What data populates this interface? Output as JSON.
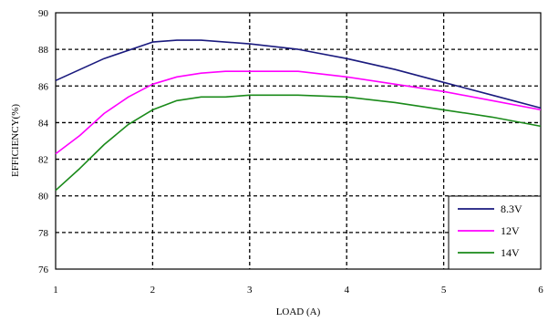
{
  "chart_data": {
    "type": "line",
    "title": "",
    "xlabel": "LOAD (A)",
    "ylabel": "EFFICIENCY(%)",
    "xlim": [
      1,
      6
    ],
    "ylim": [
      76,
      90
    ],
    "x_ticks": [
      "1",
      "2",
      "3",
      "4",
      "5",
      "6"
    ],
    "y_ticks": [
      "76",
      "78",
      "80",
      "82",
      "84",
      "86",
      "88",
      "90"
    ],
    "grid": true,
    "legend_position": "bottom-right",
    "series": [
      {
        "name": "8.3V",
        "color": "#1a1a7e",
        "x": [
          1,
          1.5,
          2,
          2.25,
          2.5,
          3,
          3.5,
          4,
          4.5,
          5,
          5.5,
          6
        ],
        "values": [
          86.3,
          87.5,
          88.4,
          88.5,
          88.5,
          88.3,
          88.0,
          87.5,
          86.9,
          86.2,
          85.5,
          84.8
        ]
      },
      {
        "name": "12V",
        "color": "#ff00ff",
        "x": [
          1,
          1.25,
          1.5,
          1.75,
          2,
          2.25,
          2.5,
          2.75,
          3,
          3.5,
          4,
          4.5,
          5,
          5.5,
          6
        ],
        "values": [
          82.3,
          83.3,
          84.5,
          85.4,
          86.1,
          86.5,
          86.7,
          86.8,
          86.8,
          86.8,
          86.5,
          86.1,
          85.7,
          85.2,
          84.7
        ]
      },
      {
        "name": "14V",
        "color": "#1a8a1a",
        "x": [
          1,
          1.25,
          1.5,
          1.75,
          2,
          2.25,
          2.5,
          2.75,
          3,
          3.5,
          4,
          4.5,
          5,
          5.5,
          6
        ],
        "values": [
          80.3,
          81.5,
          82.8,
          83.9,
          84.7,
          85.2,
          85.4,
          85.4,
          85.5,
          85.5,
          85.4,
          85.1,
          84.7,
          84.3,
          83.8
        ]
      }
    ]
  }
}
